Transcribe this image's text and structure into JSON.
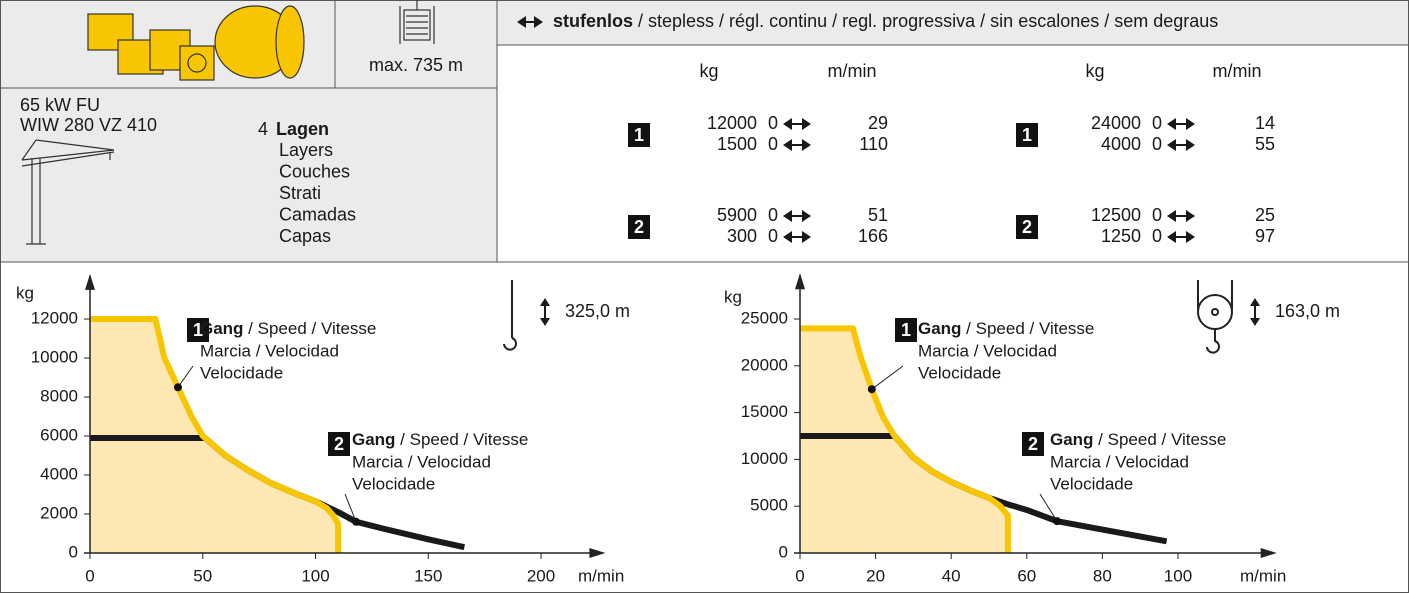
{
  "header": {
    "max_depth": "max. 735 m",
    "mode_bold": "stufenlos",
    "mode_rest": " / stepless / régl. continu / regl. progressiva / sin escalones / sem degraus",
    "units": [
      "kg",
      "m/min",
      "kg",
      "m/min"
    ]
  },
  "winch": {
    "motor": "65 kW FU",
    "model": "WIW 280 VZ 410",
    "layers_count": 4,
    "layers_bold": "Lagen",
    "layers": [
      "Layers",
      "Couches",
      "Strati",
      "Camadas",
      "Capas"
    ]
  },
  "table": {
    "groups": [
      {
        "rows": [
          {
            "gear": "1",
            "lines": [
              [
                12000,
                0,
                29
              ],
              [
                1500,
                0,
                110
              ]
            ]
          },
          {
            "gear": "2",
            "lines": [
              [
                5900,
                0,
                51
              ],
              [
                300,
                0,
                166
              ]
            ]
          }
        ]
      },
      {
        "rows": [
          {
            "gear": "1",
            "lines": [
              [
                24000,
                0,
                14
              ],
              [
                4000,
                0,
                55
              ]
            ]
          },
          {
            "gear": "2",
            "lines": [
              [
                12500,
                0,
                25
              ],
              [
                1250,
                0,
                97
              ]
            ]
          }
        ]
      }
    ]
  },
  "chart_data": [
    {
      "type": "line",
      "x_label": "m/min",
      "y_label": "kg",
      "hook_height": "325,0 m",
      "xlim": [
        0,
        225
      ],
      "ylim": [
        0,
        13700
      ],
      "xticks": [
        0,
        50,
        100,
        150,
        200
      ],
      "yticks": [
        0,
        2000,
        4000,
        6000,
        8000,
        10000,
        12000
      ],
      "series": [
        {
          "name": "1",
          "color": "#f7c600",
          "fill": "#fde7b3",
          "label": {
            "bold": "Gang",
            "rest": " / Speed / Vitesse",
            "lines": [
              "Marcia / Velocidad",
              "Velocidade"
            ]
          },
          "x": [
            0,
            29,
            33,
            39,
            45,
            50,
            60,
            70,
            80,
            90,
            100,
            105,
            108,
            110,
            110
          ],
          "values": [
            12000,
            12000,
            10000,
            8500,
            7000,
            6000,
            5000,
            4250,
            3600,
            3100,
            2650,
            2300,
            1900,
            1500,
            0
          ]
        },
        {
          "name": "2",
          "color": "#1a1a1a",
          "label": {
            "bold": "Gang",
            "rest": " / Speed / Vitesse",
            "lines": [
              "Marcia / Velocidad",
              "Velocidade"
            ]
          },
          "x": [
            0,
            51,
            60,
            70,
            80,
            90,
            100,
            110,
            118,
            130,
            150,
            166
          ],
          "values": [
            5900,
            5900,
            5000,
            4250,
            3600,
            3100,
            2650,
            2100,
            1600,
            1250,
            700,
            300
          ]
        }
      ]
    },
    {
      "type": "line",
      "x_label": "m/min",
      "y_label": "kg",
      "hook_height": "163,0 m",
      "xlim": [
        0,
        124
      ],
      "ylim": [
        0,
        28600
      ],
      "xticks": [
        0,
        20,
        40,
        60,
        80,
        100
      ],
      "yticks": [
        0,
        5000,
        10000,
        15000,
        20000,
        25000
      ],
      "series": [
        {
          "name": "1",
          "color": "#f7c600",
          "fill": "#fde7b3",
          "label": {
            "bold": "Gang",
            "rest": " / Speed / Vitesse",
            "lines": [
              "Marcia / Velocidad",
              "Velocidade"
            ]
          },
          "x": [
            0,
            14,
            16,
            19,
            22,
            25,
            30,
            35,
            40,
            45,
            50,
            53,
            55,
            55
          ],
          "values": [
            24000,
            24000,
            21000,
            17500,
            14500,
            12500,
            10200,
            8700,
            7600,
            6700,
            5900,
            5000,
            4000,
            0
          ]
        },
        {
          "name": "2",
          "color": "#1a1a1a",
          "label": {
            "bold": "Gang",
            "rest": " / Speed / Vitesse",
            "lines": [
              "Marcia / Velocidad",
              "Velocidade"
            ]
          },
          "x": [
            0,
            25,
            30,
            35,
            40,
            45,
            50,
            55,
            60,
            68,
            80,
            97
          ],
          "values": [
            12500,
            12500,
            10200,
            8700,
            7600,
            6700,
            5900,
            5200,
            4600,
            3400,
            2500,
            1250
          ]
        }
      ]
    }
  ]
}
